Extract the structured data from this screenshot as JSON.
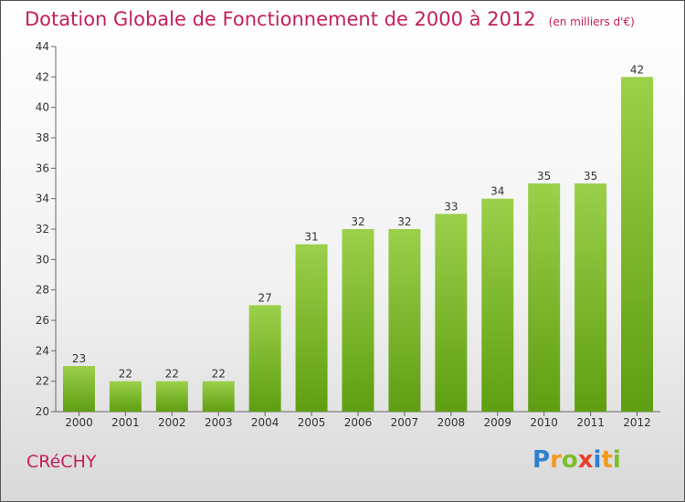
{
  "header": {
    "title": "Dotation Globale de Fonctionnement de 2000 à 2012",
    "unit": "(en milliers d'€)"
  },
  "commune": "CRéCHY",
  "logo": {
    "text": "Proxiti",
    "letters": [
      "P",
      "r",
      "o",
      "x",
      "i",
      "t",
      "i"
    ]
  },
  "colors": {
    "bar_light": "#9bd04a",
    "bar_dark": "#5f9e12",
    "title": "#c41e5c"
  },
  "chart_data": {
    "type": "bar",
    "title": "Dotation Globale de Fonctionnement de 2000 à 2012",
    "subtitle": "(en milliers d'€)",
    "categories": [
      "2000",
      "2001",
      "2002",
      "2003",
      "2004",
      "2005",
      "2006",
      "2007",
      "2008",
      "2009",
      "2010",
      "2011",
      "2012"
    ],
    "values": [
      23,
      22,
      22,
      22,
      27,
      31,
      32,
      32,
      33,
      34,
      35,
      35,
      42
    ],
    "ylim": [
      20,
      44
    ],
    "yticks": [
      20,
      22,
      24,
      26,
      28,
      30,
      32,
      34,
      36,
      38,
      40,
      42,
      44
    ],
    "grid": false
  }
}
